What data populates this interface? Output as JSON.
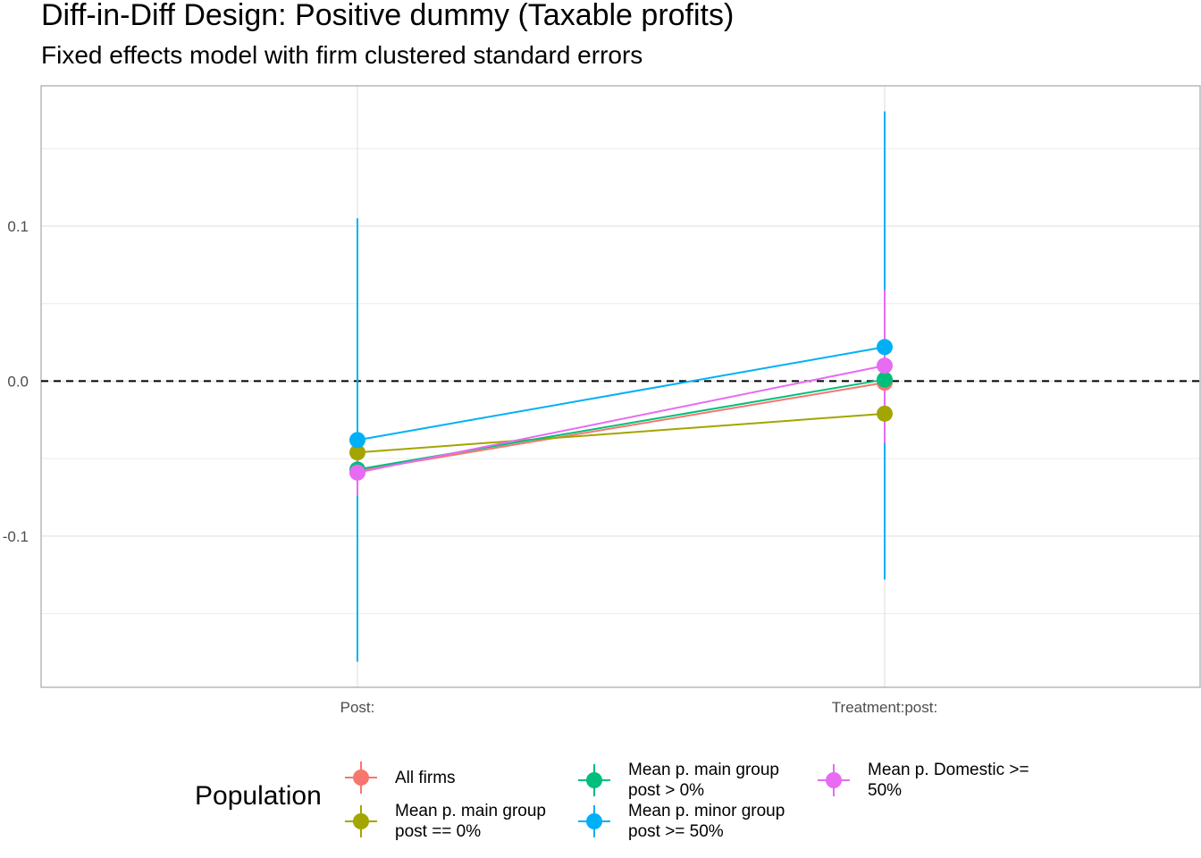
{
  "title": "Diff-in-Diff Design: Positive dummy (Taxable profits)",
  "subtitle": "Fixed effects model with firm clustered standard errors",
  "legend": {
    "title": "Population"
  },
  "chart_data": {
    "type": "scatter",
    "title": "Diff-in-Diff Design: Positive dummy (Taxable profits)",
    "subtitle": "Fixed effects model with firm clustered standard errors",
    "categories": [
      "Post:",
      "Treatment:post:"
    ],
    "ylim": [
      -0.1975,
      0.1905
    ],
    "y_ticks": [
      {
        "value": 0.1,
        "label": "0.1"
      },
      {
        "value": 0.0,
        "label": "0.0"
      },
      {
        "value": -0.1,
        "label": "-0.1"
      }
    ],
    "y_minor_gridlines": [
      0.15,
      0.05,
      -0.05,
      -0.15
    ],
    "reference_line": {
      "y": 0,
      "style": "dashed"
    },
    "grid": true,
    "legend_position": "bottom",
    "series": [
      {
        "name": "All firms",
        "color": "#F8766D",
        "estimates": [
          -0.058,
          -0.001
        ],
        "ci_low": [
          -0.07,
          -0.035
        ],
        "ci_high": [
          -0.046,
          0.033
        ]
      },
      {
        "name": "Mean p. main group\npost == 0%",
        "color": "#A3A500",
        "estimates": [
          -0.046,
          -0.021
        ],
        "ci_low": [
          -0.058,
          -0.04
        ],
        "ci_high": [
          -0.034,
          -0.002
        ]
      },
      {
        "name": "Mean p. main group\npost > 0%",
        "color": "#00BF7D",
        "estimates": [
          -0.057,
          0.001
        ],
        "ci_low": [
          -0.069,
          -0.03
        ],
        "ci_high": [
          -0.045,
          0.032
        ]
      },
      {
        "name": "Mean p. minor group\npost >= 50%",
        "color": "#00B0F6",
        "estimates": [
          -0.038,
          0.022
        ],
        "ci_low": [
          -0.181,
          -0.128
        ],
        "ci_high": [
          0.105,
          0.174
        ]
      },
      {
        "name": "Mean p. Domestic >=\n50%",
        "color": "#E76BF3",
        "estimates": [
          -0.059,
          0.01
        ],
        "ci_low": [
          -0.074,
          -0.04
        ],
        "ci_high": [
          -0.044,
          0.059
        ]
      }
    ]
  }
}
